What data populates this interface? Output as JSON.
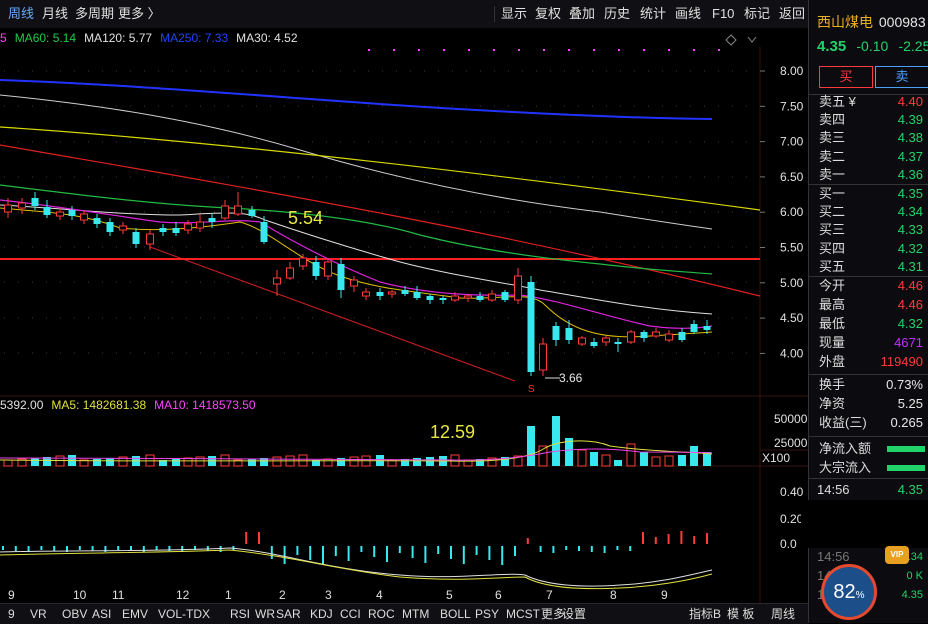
{
  "topbar": {
    "left": [
      "周线",
      "月线",
      "多周期",
      "更多 〉"
    ],
    "right": [
      "显示",
      "复权",
      "叠加",
      "历史",
      "统计",
      "画线",
      "F10",
      "标记",
      "返回"
    ]
  },
  "ma_legend": [
    {
      "text": "5",
      "color": "#ff44ff"
    },
    {
      "text": "MA60: 5.14",
      "color": "#22cc44"
    },
    {
      "text": "MA120: 5.77",
      "color": "#e0e0e0"
    },
    {
      "text": "MA250: 7.33",
      "color": "#2244ff"
    },
    {
      "text": "MA30: 4.52",
      "color": "#e0e0e0"
    }
  ],
  "price_axis": [
    "8.00",
    "7.50",
    "7.00",
    "6.50",
    "6.00",
    "5.50",
    "5.00",
    "4.50",
    "4.00"
  ],
  "annotations": {
    "high_label": "5.54",
    "low_label": "3.66",
    "vol_label": "12.59",
    "marker_s": "S"
  },
  "volume_legend": [
    {
      "text": "5392.00",
      "color": "#e0e0e0"
    },
    {
      "text": "MA5: 1482681.38",
      "color": "#e0e040"
    },
    {
      "text": "MA10: 1418573.50",
      "color": "#ff44ff"
    }
  ],
  "volume_axis": [
    "50000",
    "25000"
  ],
  "volume_unit": "X100",
  "macd_axis": [
    "0.40",
    "0.20",
    "0.0"
  ],
  "month_labels": [
    {
      "text": "9",
      "x": 8
    },
    {
      "text": "10",
      "x": 73
    },
    {
      "text": "11",
      "x": 112
    },
    {
      "text": "12",
      "x": 176
    },
    {
      "text": "1",
      "x": 225
    },
    {
      "text": "2",
      "x": 279
    },
    {
      "text": "3",
      "x": 325
    },
    {
      "text": "4",
      "x": 376
    },
    {
      "text": "5",
      "x": 446
    },
    {
      "text": "6",
      "x": 495
    },
    {
      "text": "7",
      "x": 546
    },
    {
      "text": "8",
      "x": 610
    },
    {
      "text": "9",
      "x": 661
    }
  ],
  "bottombar": {
    "indicators": [
      "9",
      "VR",
      "OBV",
      "ASI",
      "EMV",
      "VOL-TDX",
      "RSI",
      "WR",
      "SAR",
      "KDJ",
      "CCI",
      "ROC",
      "MTM",
      "BOLL",
      "PSY",
      "MCST",
      "更多",
      "设置"
    ],
    "right": [
      "指标B",
      "模 板",
      "周线"
    ]
  },
  "stock": {
    "name": "西山煤电",
    "code": "000983",
    "price": "4.35",
    "change": "-0.10",
    "change_pct": "-2.25"
  },
  "buttons": {
    "buy": "买",
    "sell": "卖"
  },
  "sell_orders": [
    {
      "label": "卖五 ¥",
      "price": "4.40",
      "dir": "up"
    },
    {
      "label": "卖四",
      "price": "4.39",
      "dir": "down"
    },
    {
      "label": "卖三",
      "price": "4.38",
      "dir": "down"
    },
    {
      "label": "卖二",
      "price": "4.37",
      "dir": "down"
    },
    {
      "label": "卖一",
      "price": "4.36",
      "dir": "down"
    }
  ],
  "buy_orders": [
    {
      "label": "买一",
      "price": "4.35",
      "dir": "down"
    },
    {
      "label": "买二",
      "price": "4.34",
      "dir": "down"
    },
    {
      "label": "买三",
      "price": "4.33",
      "dir": "down"
    },
    {
      "label": "买四",
      "price": "4.32",
      "dir": "down"
    },
    {
      "label": "买五",
      "price": "4.31",
      "dir": "down"
    }
  ],
  "stats": [
    {
      "label": "今开",
      "value": "4.46",
      "dir": "up"
    },
    {
      "label": "最高",
      "value": "4.46",
      "dir": "up"
    },
    {
      "label": "最低",
      "value": "4.32",
      "dir": "down"
    },
    {
      "label": "现量",
      "value": "4671",
      "dir": "purple"
    },
    {
      "label": "外盘",
      "value": "119490",
      "dir": "up"
    }
  ],
  "fundamentals": [
    {
      "label": "换手",
      "value": "0.73%"
    },
    {
      "label": "净资",
      "value": "5.25"
    },
    {
      "label": "收益(三)",
      "value": "0.265"
    }
  ],
  "flows": [
    {
      "label": "净流入额"
    },
    {
      "label": "大宗流入"
    }
  ],
  "ticks": [
    {
      "time": "14:56",
      "price": "4.35"
    },
    {
      "time": "14:56",
      "price": "4.34"
    },
    {
      "time": "14:56",
      "price": "0 K"
    },
    {
      "time": "15:00",
      "price": "4.35"
    }
  ],
  "overlay": {
    "percent": "82",
    "unit": "%",
    "vip": "VIP"
  },
  "colors": {
    "up": "#ff3b3b",
    "down": "#22d36a",
    "cyan": "#38e8ee",
    "panel_bg": "#0c0c10"
  }
}
